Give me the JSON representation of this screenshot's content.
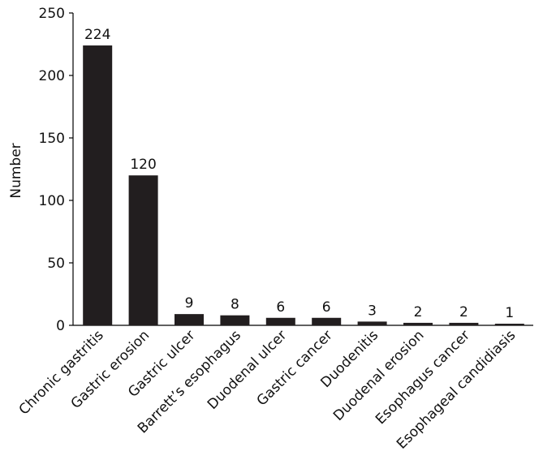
{
  "chart_data": {
    "type": "bar",
    "title": "",
    "xlabel": "",
    "ylabel": "Number",
    "ylim": [
      0,
      250
    ],
    "yticks": [
      0,
      50,
      100,
      150,
      200,
      250
    ],
    "grid": false,
    "categories": [
      "Chronic gastritis",
      "Gastric erosion",
      "Gastric ulcer",
      "Barrett’s esophagus",
      "Duodenal ulcer",
      "Gastric cancer",
      "Duodenitis",
      "Duodenal erosion",
      "Esophagus cancer",
      "Esophageal candidiasis"
    ],
    "values": [
      224,
      120,
      9,
      8,
      6,
      6,
      3,
      2,
      2,
      1
    ],
    "bar_color": "#221e1f",
    "axis_color": "#000000"
  }
}
